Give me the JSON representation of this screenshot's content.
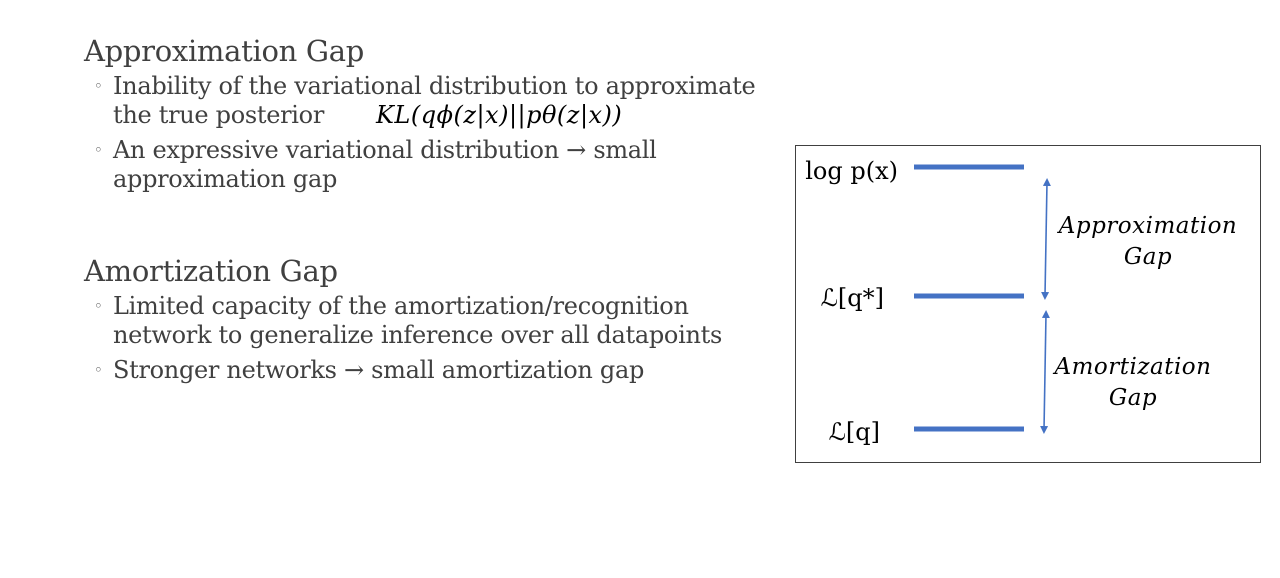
{
  "sections": [
    {
      "heading": "Approximation Gap",
      "bullets": [
        {
          "line1": "Inability of the variational distribution to approximate",
          "line2": "the true posterior",
          "math": "KL(qϕ(z|x)||pθ(z|x))"
        },
        {
          "line1": "An expressive variational distribution → small",
          "line2": "approximation gap"
        }
      ]
    },
    {
      "heading": "Amortization Gap",
      "bullets": [
        {
          "line1": "Limited capacity of the amortization/recognition",
          "line2": "network to generalize inference over all datapoints"
        },
        {
          "line1": "Stronger networks → small amortization gap"
        }
      ]
    }
  ],
  "bullet_symbol": "◦",
  "diagram": {
    "levels": [
      {
        "label": "log p(x)"
      },
      {
        "label": "ℒ[q*]"
      },
      {
        "label": "ℒ[q]"
      }
    ],
    "gaps": [
      {
        "line1": "Approximation",
        "line2": "Gap"
      },
      {
        "line1": "Amortization",
        "line2": "Gap"
      }
    ],
    "colors": {
      "level_bar": "#4472C4",
      "arrow": "#4472C4"
    }
  }
}
